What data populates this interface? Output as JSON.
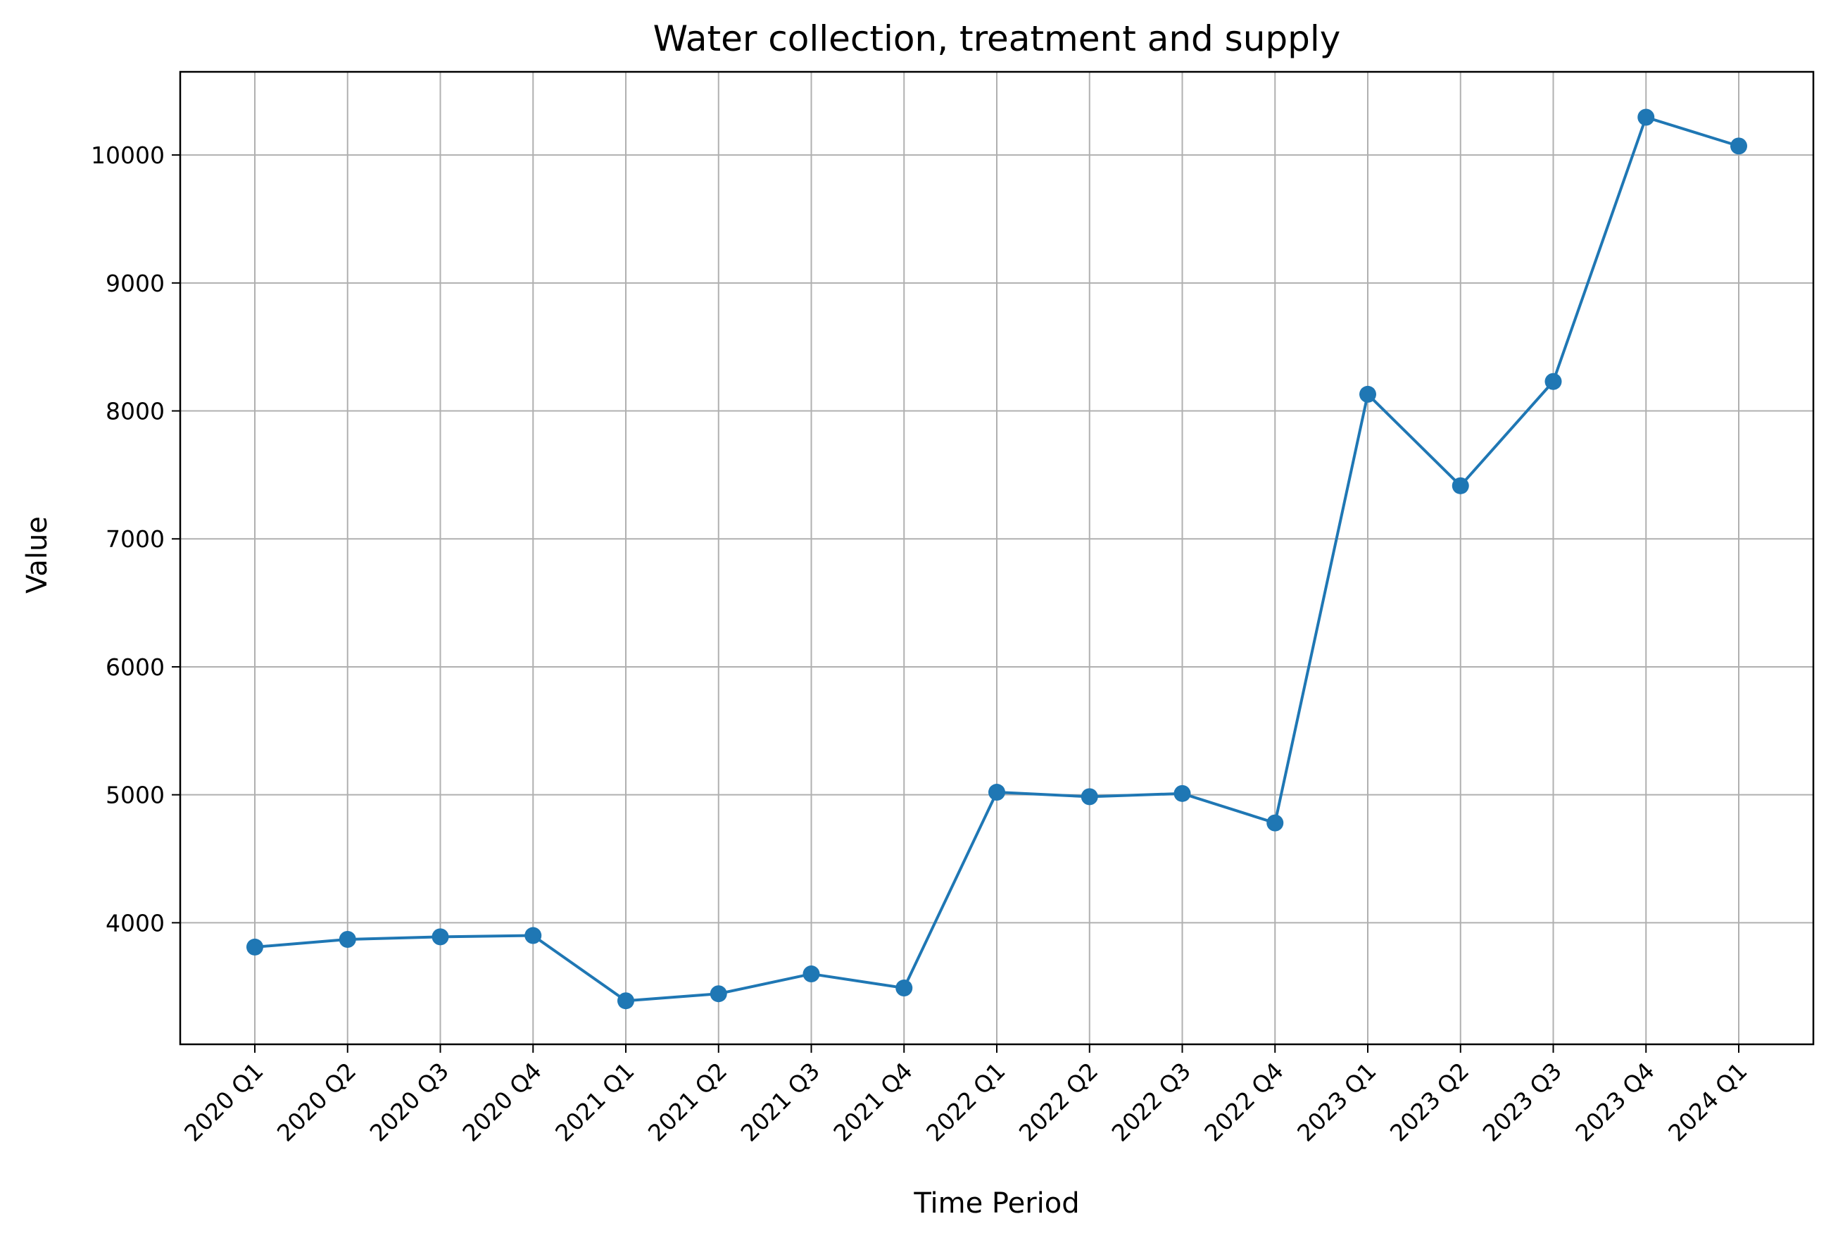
{
  "chart_data": {
    "type": "line",
    "title": "Water collection, treatment and supply",
    "xlabel": "Time Period",
    "ylabel": "Value",
    "categories": [
      "2020 Q1",
      "2020 Q2",
      "2020 Q3",
      "2020 Q4",
      "2021 Q1",
      "2021 Q2",
      "2021 Q3",
      "2021 Q4",
      "2022 Q1",
      "2022 Q2",
      "2022 Q3",
      "2022 Q4",
      "2023 Q1",
      "2023 Q2",
      "2023 Q3",
      "2023 Q4",
      "2024 Q1"
    ],
    "series": [
      {
        "values": [
          3810,
          3870,
          3890,
          3900,
          3390,
          3445,
          3600,
          3490,
          5020,
          4985,
          5010,
          4780,
          8130,
          7415,
          8230,
          10295,
          10070
        ]
      }
    ],
    "ylim": [
      3050,
      10650
    ],
    "yticks": [
      4000,
      5000,
      6000,
      7000,
      8000,
      9000,
      10000
    ],
    "grid": true,
    "legend": "none",
    "colors": {
      "line": "#1f77b4",
      "grid": "#b0b0b0",
      "axes": "#000000"
    }
  }
}
